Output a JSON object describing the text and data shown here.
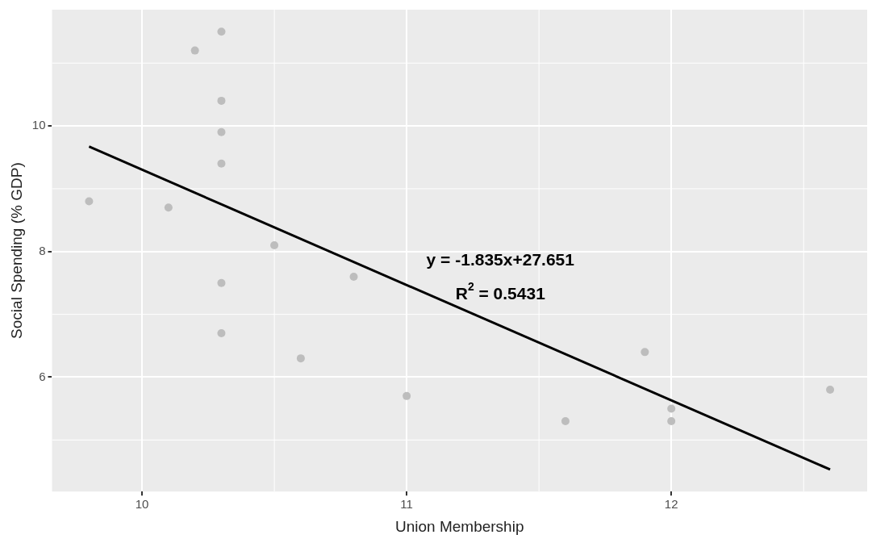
{
  "chart_data": {
    "type": "scatter",
    "xlabel": "Union Membership",
    "ylabel": "Social Spending (% GDP)",
    "series": [
      {
        "marker": "circle",
        "color": "#bdbdbd",
        "x": [
          9.8,
          10.1,
          10.2,
          10.3,
          10.3,
          10.3,
          10.3,
          10.3,
          10.3,
          10.5,
          10.6,
          10.8,
          11.0,
          11.6,
          11.9,
          12.0,
          12.0,
          12.6
        ],
        "values": [
          8.8,
          8.7,
          11.2,
          11.5,
          10.4,
          9.9,
          9.4,
          7.5,
          6.7,
          8.1,
          6.3,
          7.6,
          5.7,
          5.3,
          6.4,
          5.5,
          5.3,
          5.8
        ]
      },
      {
        "type": "line",
        "color": "#000000",
        "x": [
          9.8,
          12.6
        ],
        "values": [
          9.67,
          4.53
        ]
      }
    ],
    "xlim": [
      9.66,
      12.74
    ],
    "xticks": [
      10,
      11,
      12
    ],
    "ylim": [
      4.18,
      11.85
    ],
    "yticks": [
      6,
      8,
      10
    ],
    "grid": true,
    "annotations": [
      "y = -1.835x+27.651",
      "R$^{2}$ = 0.5431"
    ]
  }
}
